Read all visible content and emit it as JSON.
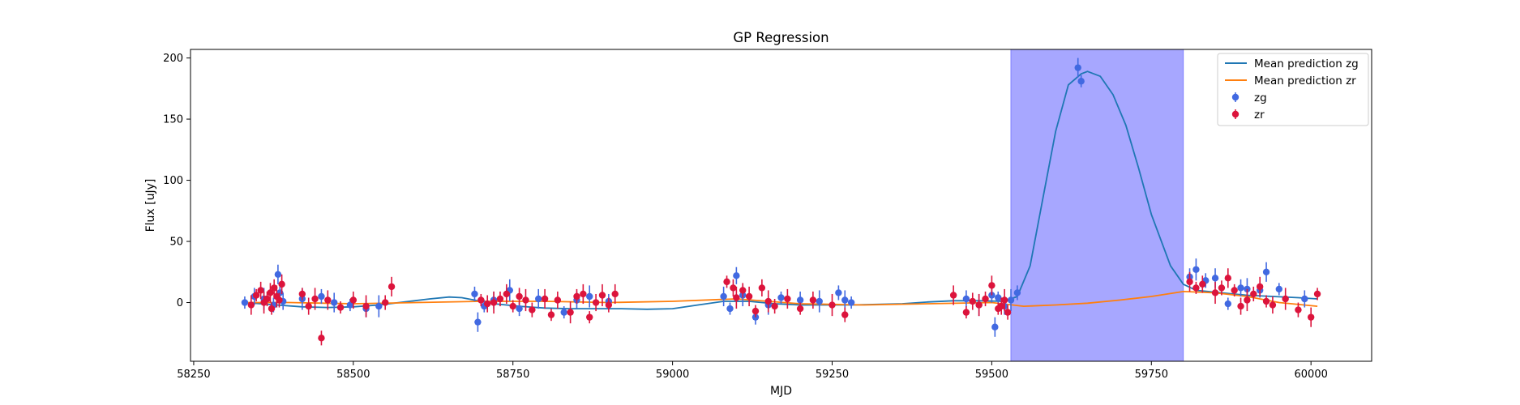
{
  "chart_data": {
    "type": "scatter",
    "title": "GP Regression",
    "xlabel": "MJD",
    "ylabel": "Flux [uJy]",
    "xlim": [
      58245,
      60095
    ],
    "ylim": [
      -48,
      207
    ],
    "xticks": [
      58250,
      58500,
      58750,
      59000,
      59250,
      59500,
      59750,
      60000
    ],
    "yticks": [
      0,
      50,
      100,
      150,
      200
    ],
    "grid": false,
    "legend_position": "top-right",
    "highlight_region": {
      "x0": 59530,
      "x1": 59800,
      "color": "#a7a7ff"
    },
    "series": [
      {
        "name": "Mean prediction zg",
        "kind": "line",
        "color": "#1f77b4",
        "x": [
          58330,
          58380,
          58420,
          58460,
          58500,
          58540,
          58580,
          58620,
          58650,
          58670,
          58690,
          58720,
          58760,
          58800,
          58840,
          58880,
          58920,
          58960,
          59000,
          59040,
          59080,
          59120,
          59160,
          59200,
          59240,
          59280,
          59320,
          59360,
          59400,
          59440,
          59480,
          59520,
          59540,
          59560,
          59580,
          59600,
          59620,
          59640,
          59650,
          59670,
          59690,
          59710,
          59730,
          59750,
          59780,
          59800,
          59820,
          59860,
          59900,
          59940,
          59980,
          60010
        ],
        "y": [
          0,
          -2,
          -3.5,
          -4,
          -3.5,
          -2,
          0.5,
          3,
          4.5,
          4,
          2,
          -1,
          -3,
          -4.5,
          -5,
          -5,
          -5,
          -5.5,
          -5,
          -2,
          1,
          1,
          -1,
          -2,
          -2,
          -2,
          -1.5,
          -1,
          0.5,
          1.5,
          1.5,
          1,
          5,
          30,
          85,
          140,
          178,
          187,
          189,
          185,
          170,
          145,
          110,
          72,
          30,
          15,
          10,
          8,
          6,
          5,
          4,
          3
        ]
      },
      {
        "name": "Mean prediction zr",
        "kind": "line",
        "color": "#ff7f0e",
        "x": [
          58330,
          58400,
          58500,
          58600,
          58700,
          58800,
          58900,
          59000,
          59100,
          59200,
          59300,
          59400,
          59500,
          59550,
          59600,
          59650,
          59700,
          59750,
          59800,
          59850,
          59900,
          59950,
          60010
        ],
        "y": [
          0,
          0,
          -1,
          0,
          1,
          1,
          0,
          1,
          3,
          -1,
          -2,
          -1,
          0,
          -3,
          -2,
          -0.5,
          2,
          5,
          9,
          8,
          5,
          0,
          -3
        ]
      },
      {
        "name": "zg",
        "kind": "errorbar",
        "color": "#4169e1",
        "x": [
          58330,
          58345,
          58360,
          58375,
          58382,
          58385,
          58390,
          58420,
          58450,
          58470,
          58495,
          58520,
          58540,
          58690,
          58695,
          58705,
          58720,
          58745,
          58760,
          58790,
          58830,
          58850,
          58870,
          58900,
          59080,
          59090,
          59100,
          59110,
          59130,
          59150,
          59170,
          59200,
          59230,
          59260,
          59270,
          59280,
          59460,
          59480,
          59500,
          59505,
          59510,
          59520,
          59530,
          59540,
          59635,
          59640,
          59810,
          59820,
          59835,
          59850,
          59870,
          59890,
          59900,
          59920,
          59930,
          59950,
          59990
        ],
        "y": [
          0,
          5,
          3,
          -2,
          23,
          8,
          1,
          3,
          5,
          0,
          -2,
          -5,
          -3,
          7,
          -16,
          -3,
          2,
          10,
          -5,
          3,
          -8,
          2,
          5,
          1,
          5,
          -5,
          22,
          6,
          -12,
          -2,
          4,
          2,
          1,
          8,
          2,
          0,
          3,
          -2,
          6,
          -20,
          4,
          -3,
          2,
          8,
          192,
          181,
          21,
          27,
          18,
          20,
          -1,
          12,
          11,
          10,
          25,
          11,
          3
        ]
      },
      {
        "name": "zr",
        "kind": "errorbar",
        "color": "#dc143c",
        "x": [
          58340,
          58348,
          58355,
          58360,
          58365,
          58370,
          58372,
          58376,
          58380,
          58384,
          58388,
          58420,
          58430,
          58440,
          58450,
          58460,
          58480,
          58500,
          58520,
          58550,
          58560,
          58700,
          58710,
          58720,
          58730,
          58740,
          58750,
          58760,
          58770,
          58780,
          58800,
          58810,
          58820,
          58840,
          58850,
          58860,
          58870,
          58880,
          58890,
          58900,
          58910,
          59085,
          59095,
          59100,
          59110,
          59120,
          59130,
          59140,
          59150,
          59160,
          59180,
          59200,
          59220,
          59250,
          59270,
          59440,
          59460,
          59470,
          59480,
          59490,
          59500,
          59510,
          59515,
          59520,
          59525,
          59810,
          59820,
          59830,
          59850,
          59860,
          59870,
          59880,
          59890,
          59900,
          59910,
          59920,
          59930,
          59940,
          59960,
          59980,
          60000,
          60010
        ],
        "y": [
          -2,
          6,
          10,
          0,
          3,
          8,
          -5,
          12,
          5,
          2,
          15,
          7,
          -3,
          3,
          -29,
          2,
          -4,
          2,
          -3,
          0,
          13,
          2,
          -1,
          0,
          3,
          7,
          -3,
          5,
          2,
          -6,
          3,
          -10,
          2,
          -8,
          5,
          7,
          -12,
          0,
          6,
          -2,
          7,
          17,
          12,
          4,
          10,
          5,
          -7,
          12,
          1,
          -3,
          3,
          -5,
          2,
          -2,
          -10,
          6,
          -8,
          1,
          -2,
          3,
          14,
          -5,
          -3,
          2,
          -8,
          17,
          12,
          15,
          8,
          12,
          20,
          10,
          -3,
          2,
          7,
          13,
          1,
          -2,
          3,
          -6,
          -12,
          7
        ]
      }
    ]
  }
}
